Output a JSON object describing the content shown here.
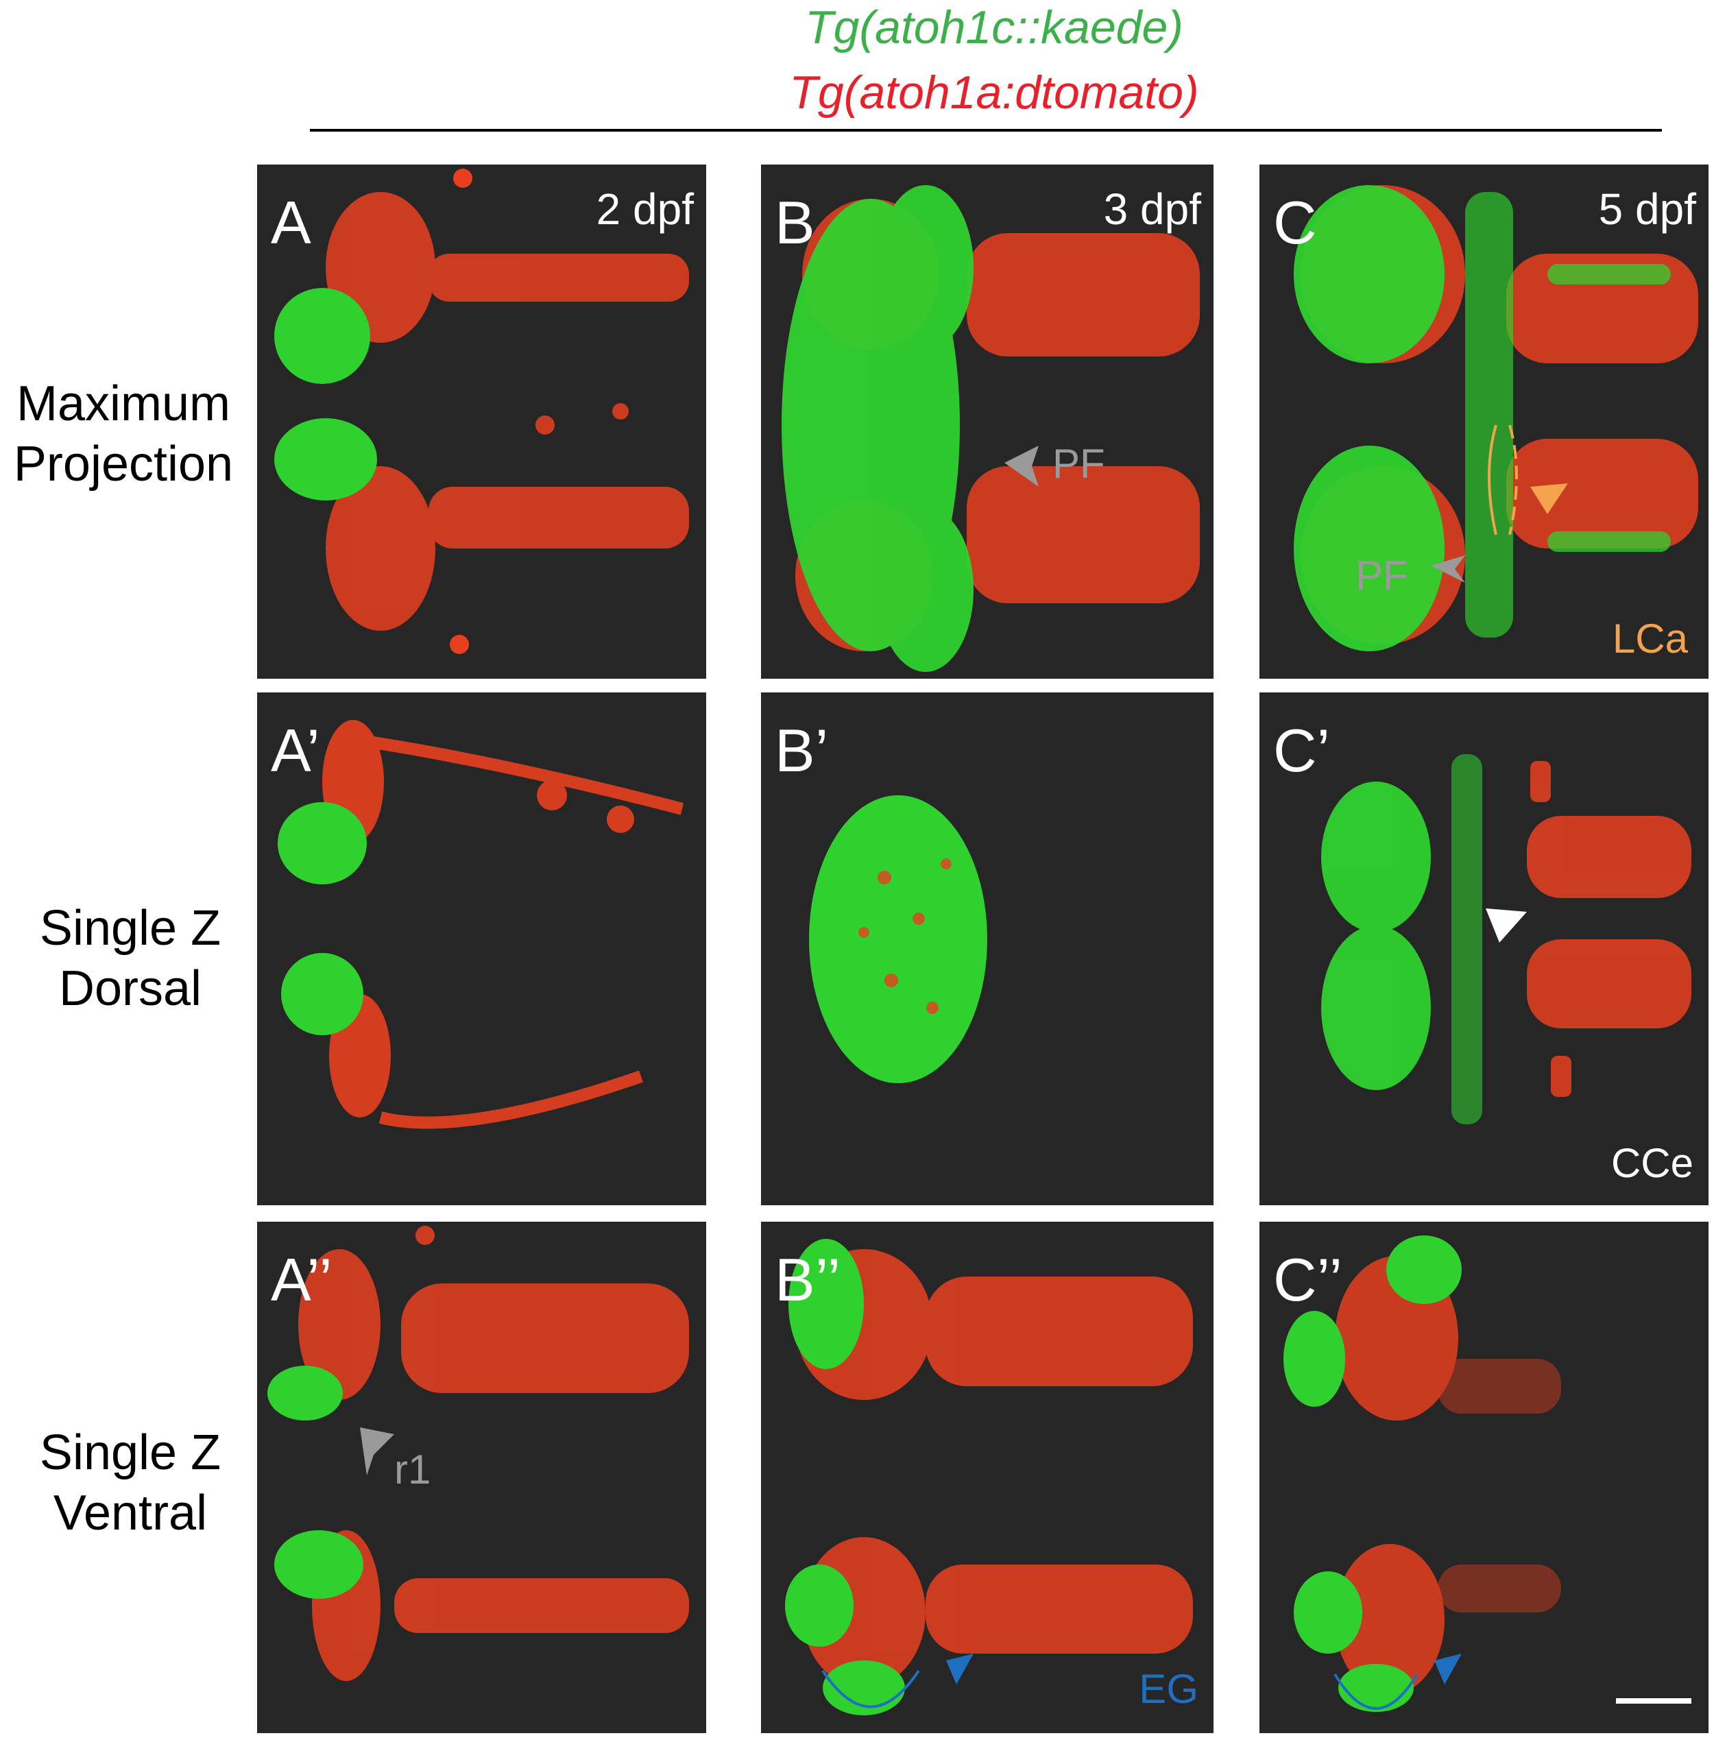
{
  "header": {
    "line1": "Tg(atoh1c::kaede)",
    "line2": "Tg(atoh1a:dtomato)",
    "line1_color": "#3cb04a",
    "line2_color": "#e8202a"
  },
  "row_labels": {
    "row1_a": "Maximum",
    "row1_b": "Projection",
    "row2_a": "Single Z",
    "row2_b": "Dorsal",
    "row3_a": "Single Z",
    "row3_b": "Ventral"
  },
  "panels": {
    "A": {
      "label": "A",
      "stage": "2 dpf"
    },
    "B": {
      "label": "B",
      "stage": "3 dpf",
      "annotation": "PF"
    },
    "C": {
      "label": "C",
      "stage": "5 dpf",
      "annotation_pf": "PF",
      "annotation_lca": "LCa"
    },
    "A1": {
      "label": "A’"
    },
    "B1": {
      "label": "B’"
    },
    "C1": {
      "label": "C’",
      "annotation": "CCe"
    },
    "A2": {
      "label": "A’’",
      "annotation": "r1"
    },
    "B2": {
      "label": "B’’",
      "annotation": "EG"
    },
    "C2": {
      "label": "C’’"
    }
  },
  "colors": {
    "green_signal": "#2fd12f",
    "red_signal": "#f23a1c",
    "background": "#262626",
    "gray_arrow": "#9a9a9a",
    "orange_annotation": "#f4a24b",
    "blue_annotation": "#1e6fc0",
    "white_annotation": "#ffffff"
  }
}
